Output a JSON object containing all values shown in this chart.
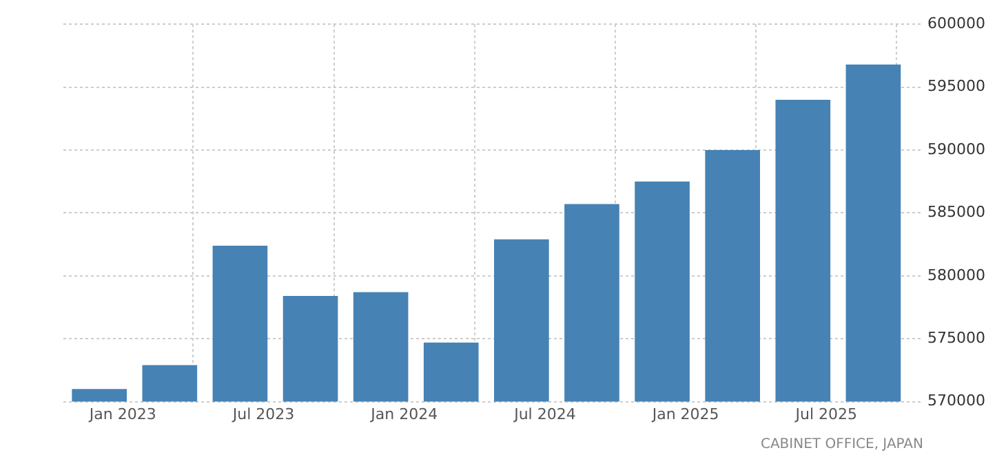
{
  "chart_data": {
    "type": "bar",
    "x": [
      "2022-12",
      "2023-03",
      "2023-06",
      "2023-09",
      "2023-12",
      "2024-03",
      "2024-06",
      "2024-09",
      "2024-12",
      "2025-03",
      "2025-06",
      "2025-09"
    ],
    "values": [
      571000,
      572900,
      582400,
      578400,
      578700,
      574700,
      582900,
      585700,
      587500,
      590000,
      594000,
      596800
    ],
    "color": "#4682b4",
    "xlim": [
      "2022-10-15",
      "2025-11-05"
    ],
    "xticks": [
      {
        "value": "2023-01",
        "label": "Jan 2023"
      },
      {
        "value": "2023-07",
        "label": "Jul 2023"
      },
      {
        "value": "2024-01",
        "label": "Jan 2024"
      },
      {
        "value": "2024-07",
        "label": "Jul 2024"
      },
      {
        "value": "2025-01",
        "label": "Jan 2025"
      },
      {
        "value": "2025-07",
        "label": "Jul 2025"
      }
    ],
    "ylim": [
      570000,
      600000
    ],
    "yticks": [
      570000,
      575000,
      580000,
      585000,
      590000,
      595000,
      600000
    ],
    "grid": true,
    "annotations": [
      "CABINET OFFICE, JAPAN"
    ]
  }
}
